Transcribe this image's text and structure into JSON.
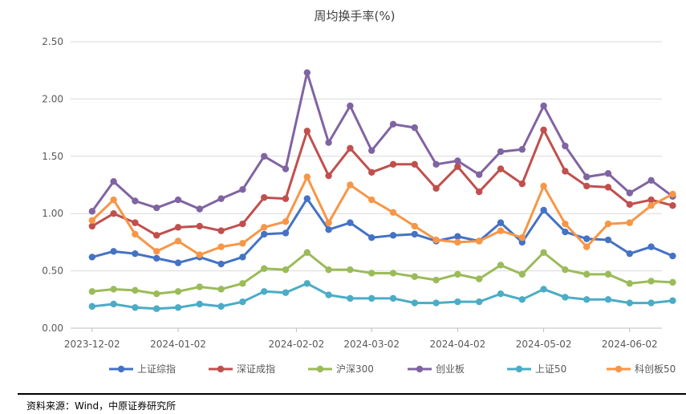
{
  "chart_data": {
    "type": "line",
    "title": "周均换手率(%)",
    "xlabel": "",
    "ylabel": "",
    "ylim": [
      0,
      2.5
    ],
    "yticks": [
      "0.00",
      "0.50",
      "1.00",
      "1.50",
      "2.00",
      "2.50"
    ],
    "x_tick_labels": [
      "2023-12-02",
      "2024-01-02",
      "2024-02-02",
      "2024-03-02",
      "2024-04-02",
      "2024-05-02",
      "2024-06-02"
    ],
    "x_tick_positions": [
      0,
      4,
      9.5,
      13,
      17,
      21,
      25
    ],
    "x_range": [
      -1,
      26.5
    ],
    "grid": "horizontal",
    "legend_position": "bottom",
    "series": [
      {
        "name": "上证综指",
        "color": "#4472C4",
        "values": [
          0.62,
          0.67,
          0.65,
          0.61,
          0.57,
          0.62,
          0.56,
          0.62,
          0.82,
          0.83,
          1.13,
          0.86,
          0.92,
          0.79,
          0.81,
          0.82,
          0.76,
          0.8,
          0.76,
          0.92,
          0.75,
          1.03,
          0.84,
          0.78,
          0.77,
          0.65,
          0.71,
          0.63
        ]
      },
      {
        "name": "深证成指",
        "color": "#C0504D",
        "values": [
          0.89,
          1.0,
          0.92,
          0.81,
          0.88,
          0.89,
          0.85,
          0.91,
          1.14,
          1.13,
          1.72,
          1.33,
          1.57,
          1.36,
          1.43,
          1.43,
          1.22,
          1.41,
          1.19,
          1.39,
          1.26,
          1.73,
          1.37,
          1.24,
          1.23,
          1.08,
          1.12,
          1.07
        ]
      },
      {
        "name": "沪深300",
        "color": "#9BBB59",
        "values": [
          0.32,
          0.34,
          0.33,
          0.3,
          0.32,
          0.36,
          0.34,
          0.39,
          0.52,
          0.51,
          0.66,
          0.51,
          0.51,
          0.48,
          0.48,
          0.45,
          0.42,
          0.47,
          0.43,
          0.55,
          0.47,
          0.66,
          0.51,
          0.47,
          0.47,
          0.39,
          0.41,
          0.4
        ]
      },
      {
        "name": "创业板",
        "color": "#8064A2",
        "values": [
          1.02,
          1.28,
          1.11,
          1.05,
          1.12,
          1.04,
          1.13,
          1.21,
          1.5,
          1.39,
          2.23,
          1.62,
          1.94,
          1.55,
          1.78,
          1.75,
          1.43,
          1.46,
          1.34,
          1.54,
          1.56,
          1.94,
          1.59,
          1.32,
          1.35,
          1.18,
          1.29,
          1.15
        ]
      },
      {
        "name": "上证50",
        "color": "#4BACC6",
        "values": [
          0.19,
          0.21,
          0.18,
          0.17,
          0.18,
          0.21,
          0.19,
          0.23,
          0.32,
          0.31,
          0.39,
          0.29,
          0.26,
          0.26,
          0.26,
          0.22,
          0.22,
          0.23,
          0.23,
          0.3,
          0.25,
          0.34,
          0.27,
          0.25,
          0.25,
          0.22,
          0.22,
          0.24
        ]
      },
      {
        "name": "科创板50",
        "color": "#F79646",
        "values": [
          0.94,
          1.12,
          0.82,
          0.67,
          0.76,
          0.64,
          0.71,
          0.74,
          0.88,
          0.93,
          1.32,
          0.92,
          1.25,
          1.12,
          1.01,
          0.89,
          0.77,
          0.75,
          0.76,
          0.85,
          0.79,
          1.24,
          0.91,
          0.71,
          0.91,
          0.92,
          1.07,
          1.17
        ]
      }
    ]
  },
  "footer": {
    "source": "资料来源：Wind，中原证券研究所"
  }
}
